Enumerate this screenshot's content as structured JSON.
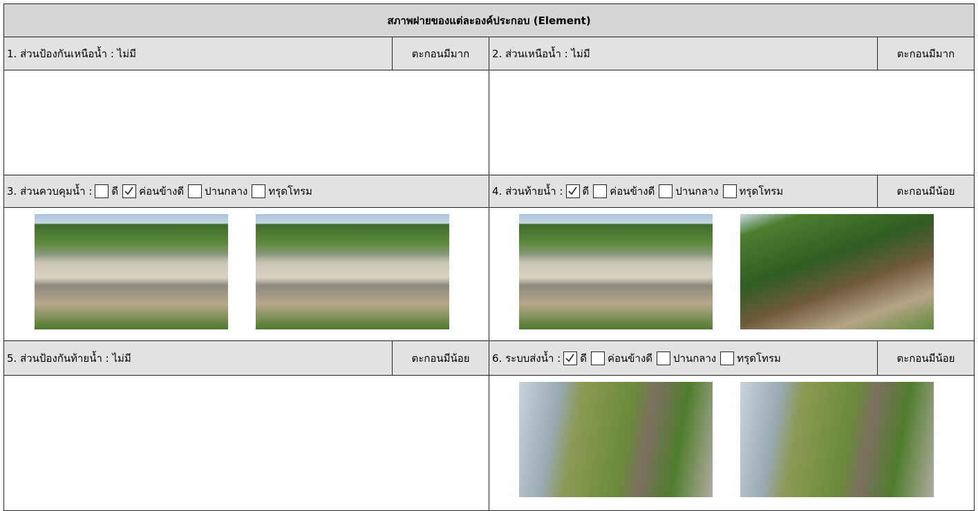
{
  "header": {
    "title": "สภาพฝายของแต่ละองค์ประกอบ (Element)"
  },
  "sections": [
    {
      "label": "1. ส่วนป้องกันเหนือน้ำ : ไม่มี",
      "status": "ตะกอนมีมาก"
    },
    {
      "label": "2. ส่วนเหนือน้ำ : ไม่มี",
      "status": "ตะกอนมีมาก"
    },
    {
      "label": "3. ส่วนควบคุมน้ำ :",
      "options": [
        {
          "label": "ดี",
          "checked": false
        },
        {
          "label": "ค่อนข้างดี",
          "checked": true
        },
        {
          "label": "ปานกลาง",
          "checked": false
        },
        {
          "label": "ทรุดโทรม",
          "checked": false
        }
      ]
    },
    {
      "label": "4. ส่วนท้ายน้ำ :",
      "options": [
        {
          "label": "ดี",
          "checked": true
        },
        {
          "label": "ค่อนข้างดี",
          "checked": false
        },
        {
          "label": "ปานกลาง",
          "checked": false
        },
        {
          "label": "ทรุดโทรม",
          "checked": false
        }
      ],
      "status": "ตะกอนมีน้อย"
    },
    {
      "label": "5. ส่วนป้องกันท้ายน้ำ : ไม่มี",
      "status": "ตะกอนมีน้อย"
    },
    {
      "label": "6. ระบบส่งน้ำ :",
      "options": [
        {
          "label": "ดี",
          "checked": true
        },
        {
          "label": "ค่อนข้างดี",
          "checked": false
        },
        {
          "label": "ปานกลาง",
          "checked": false
        },
        {
          "label": "ทรุดโทรม",
          "checked": false
        }
      ],
      "status": "ตะกอนมีน้อย"
    }
  ]
}
